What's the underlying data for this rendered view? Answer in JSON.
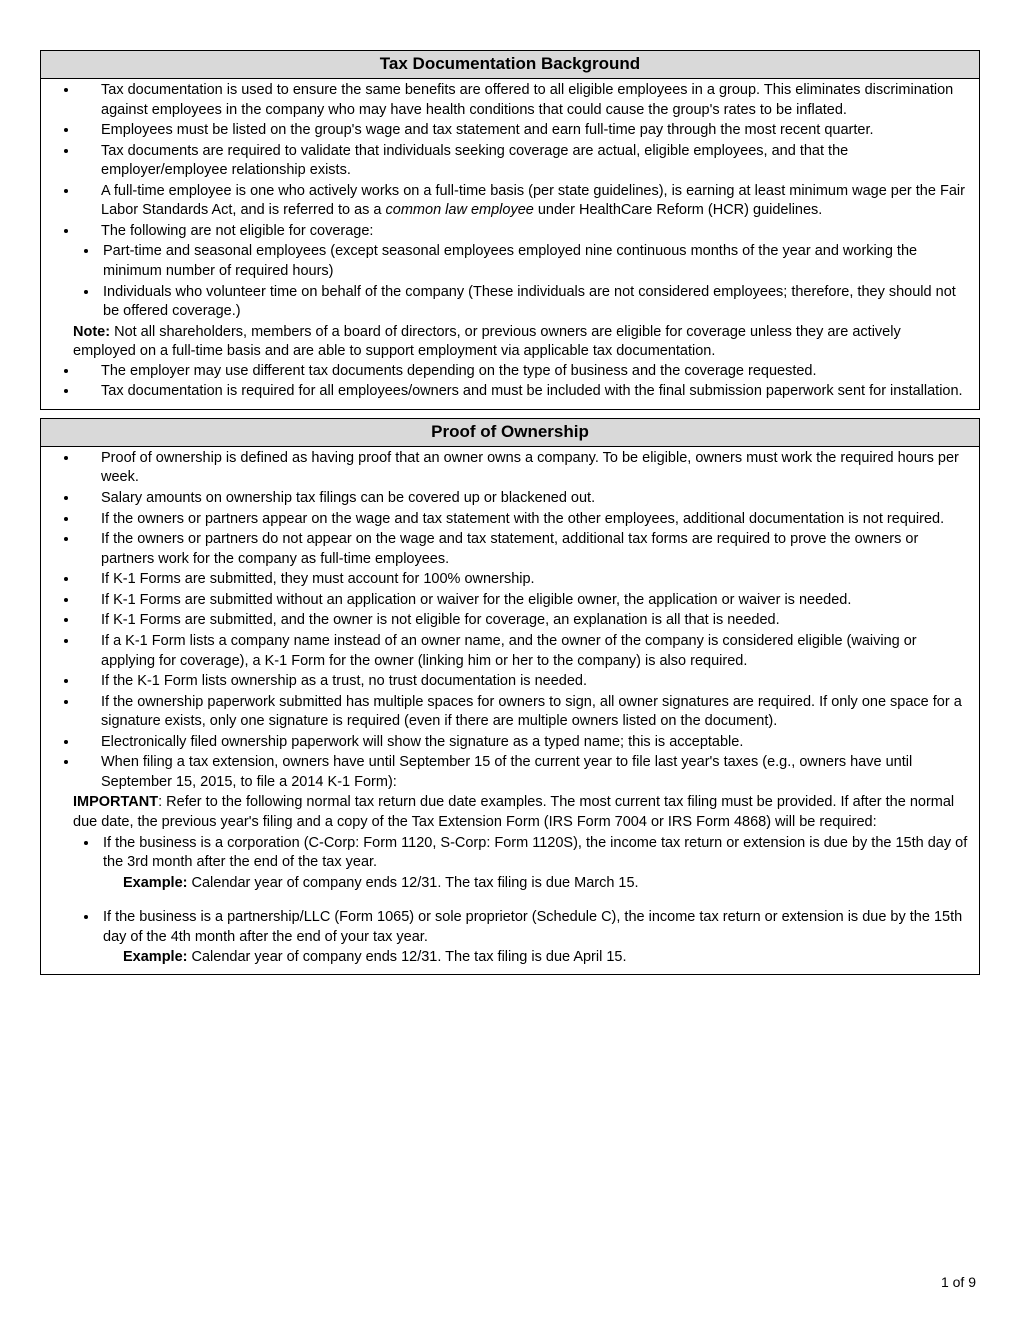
{
  "page": {
    "footer": "1 of 9"
  },
  "sections": [
    {
      "title": "Tax Documentation Background",
      "items": [
        {
          "type": "li",
          "text": "Tax documentation is used to ensure the same benefits are offered to all eligible employees in a group. This eliminates discrimination against employees in the company who may have health conditions that could cause the group's rates to be inflated."
        },
        {
          "type": "li",
          "text": "Employees must be listed on the group's wage and tax statement and earn full-time pay through the most recent quarter."
        },
        {
          "type": "li",
          "text": "Tax documents are required to validate that individuals seeking coverage are actual, eligible employees, and that the employer/employee relationship exists."
        },
        {
          "type": "li",
          "html": "A full-time employee is one who actively works on a full-time basis (per state guidelines), is earning at least minimum wage per the Fair Labor Standards Act, and is referred to as a <em class='term'>common law employee</em> under HealthCare Reform (HCR) guidelines."
        },
        {
          "type": "li",
          "text": "The following are not eligible for coverage:"
        },
        {
          "type": "sub",
          "items": [
            "Part-time and seasonal employees (except seasonal employees employed nine continuous months of the year and working the minimum number of required hours)",
            "Individuals who volunteer time on behalf of the company (These individuals are not considered employees; therefore, they should not be offered coverage.)"
          ]
        },
        {
          "type": "note",
          "html": "<strong>Note:</strong> Not all shareholders, members of a board of directors, or previous owners are eligible for coverage unless they are actively employed on a full-time basis and are able to support employment via applicable tax documentation."
        },
        {
          "type": "li",
          "text": "The employer may use different tax documents depending on the type of business and the coverage requested."
        },
        {
          "type": "li",
          "text": "Tax documentation is required for all employees/owners and must be included with the final submission paperwork sent for installation."
        }
      ]
    },
    {
      "title": "Proof of Ownership",
      "items": [
        {
          "type": "li",
          "text": "Proof of ownership is defined as having proof that an owner owns a company.  To be eligible, owners must work the required hours per week."
        },
        {
          "type": "li",
          "text": "Salary amounts on ownership tax filings can be covered up or blackened out."
        },
        {
          "type": "li",
          "text": "If the owners or partners appear on the wage and tax statement with the other employees, additional documentation is not required."
        },
        {
          "type": "li",
          "text": "If the owners or partners do not appear on the wage and tax statement, additional tax forms are required to prove the owners or partners work for the company as full-time employees."
        },
        {
          "type": "li",
          "text": "If K-1 Forms are submitted, they must account for 100% ownership."
        },
        {
          "type": "li",
          "text": "If K-1 Forms are submitted without an application or waiver for the eligible owner, the application or waiver is needed."
        },
        {
          "type": "li",
          "text": "If K-1 Forms are submitted, and the owner is not eligible for coverage, an explanation is all that is needed."
        },
        {
          "type": "li",
          "text": "If a K-1 Form lists a company name instead of an owner name, and the owner of the company is considered eligible (waiving or applying for coverage), a K-1 Form for the owner (linking him or her to the company) is also required."
        },
        {
          "type": "li",
          "text": "If the K-1 Form lists ownership as a trust, no trust documentation is needed."
        },
        {
          "type": "li",
          "text": "If the ownership paperwork submitted has multiple spaces for owners to sign, all owner signatures are required. If only one space for a signature exists, only one signature is required (even if there are multiple owners listed on the document)."
        },
        {
          "type": "li",
          "text": "Electronically filed ownership paperwork will show the signature as a typed name; this is acceptable."
        },
        {
          "type": "li",
          "text": "When filing a tax extension, owners have until September 15 of the current year to file last year's taxes (e.g., owners have until September 15, 2015, to file a 2014 K-1 Form):"
        },
        {
          "type": "note",
          "html": "<strong>IMPORTANT</strong>: Refer to the following normal tax return due date examples. The most current tax filing must be provided.  If after the normal due date, the previous year's filing and a copy of the Tax Extension Form (IRS Form 7004 or IRS Form 4868) will be required:"
        },
        {
          "type": "sub",
          "items": [
            "If the business is a corporation (C-Corp: Form 1120, S-Corp: Form 1120S), the income tax return or extension is due by the 15th day of the 3rd month after the end of the tax year."
          ]
        },
        {
          "type": "ex",
          "html": "<strong>Example:</strong> Calendar year of company ends 12/31. The tax filing is due March 15."
        },
        {
          "type": "spacer"
        },
        {
          "type": "sub",
          "items": [
            "If the business is a partnership/LLC (Form 1065) or sole proprietor (Schedule C), the income tax return or extension is due by the 15th day of the 4th month after the end of your tax year."
          ]
        },
        {
          "type": "ex",
          "html": "<strong>Example:</strong> Calendar year of company ends 12/31. The tax filing is due April 15."
        }
      ]
    }
  ]
}
